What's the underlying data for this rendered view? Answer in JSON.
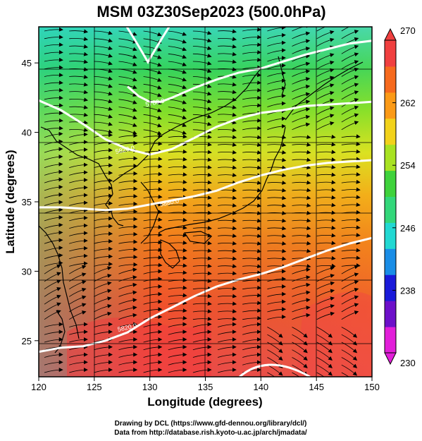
{
  "title": "MSM 03Z30Sep2023 (500.0hPa)",
  "xlabel": "Longitude (degrees)",
  "ylabel": "Latitude  (degrees)",
  "credits": {
    "line1": "Drawing by DCL (https://www.gfd-dennou.org/library/dcl/)",
    "line2": "Data from http://database.rish.kyoto-u.ac.jp/arch/jmadata/"
  },
  "chart_data": {
    "type": "heatmap",
    "variable_shading": "temperature (K)",
    "contours": "geopotential height (m)",
    "vectors": "wind streamlines",
    "xlim": [
      120,
      150
    ],
    "ylim": [
      22.4,
      47.6
    ],
    "x_ticks": [
      "120",
      "125",
      "130",
      "135",
      "140",
      "145",
      "150"
    ],
    "x_tick_values": [
      120,
      125,
      130,
      135,
      140,
      145,
      150
    ],
    "y_ticks": [
      "25",
      "30",
      "35",
      "40",
      "45"
    ],
    "y_tick_values": [
      25,
      30,
      35,
      40,
      45
    ],
    "colorbar": {
      "min": 230,
      "max": 270,
      "ticks": [
        "230",
        "238",
        "246",
        "254",
        "262",
        "270"
      ],
      "tick_values": [
        230,
        238,
        246,
        254,
        262,
        270
      ],
      "colors": [
        "#e21fd9",
        "#6d10c9",
        "#1a1ad9",
        "#1a8de6",
        "#22d8d2",
        "#33d77a",
        "#3fd23c",
        "#a8e222",
        "#f2d21b",
        "#fb9a17",
        "#f66a1e",
        "#f04040"
      ]
    },
    "contour_labels": [
      {
        "text": "5820.0",
        "lon": 128.0,
        "lat": 25.8
      },
      {
        "text": "5880.0",
        "lon": 131.8,
        "lat": 34.8
      },
      {
        "text": "5820.0",
        "lon": 127.8,
        "lat": 38.6
      },
      {
        "text": "5760.0",
        "lon": 130.5,
        "lat": 42.0
      }
    ],
    "contour_lines": [
      {
        "lat_at": [
          [
            120,
            24.2
          ],
          [
            122,
            24.5
          ],
          [
            124,
            24.6
          ],
          [
            126,
            25.0
          ],
          [
            128,
            25.6
          ],
          [
            130,
            26.6
          ],
          [
            132,
            27.4
          ],
          [
            134,
            28.2
          ],
          [
            136,
            28.9
          ],
          [
            138,
            29.4
          ],
          [
            140,
            29.8
          ],
          [
            142,
            30.3
          ],
          [
            144,
            30.9
          ],
          [
            146,
            31.5
          ],
          [
            148,
            32.0
          ],
          [
            150,
            32.4
          ]
        ]
      },
      {
        "lat_at": [
          [
            120,
            34.6
          ],
          [
            122,
            34.6
          ],
          [
            124,
            34.5
          ],
          [
            126,
            34.4
          ],
          [
            128,
            34.5
          ],
          [
            130,
            34.8
          ],
          [
            132,
            35.1
          ],
          [
            134,
            35.4
          ],
          [
            136,
            35.8
          ],
          [
            138,
            36.4
          ],
          [
            140,
            36.9
          ],
          [
            142,
            37.3
          ],
          [
            144,
            37.6
          ],
          [
            146,
            37.8
          ],
          [
            148,
            37.9
          ],
          [
            150,
            38.0
          ]
        ]
      },
      {
        "lat_at": [
          [
            120,
            42.3
          ],
          [
            122,
            41.6
          ],
          [
            124,
            40.6
          ],
          [
            126,
            39.5
          ],
          [
            128,
            38.8
          ],
          [
            130,
            38.4
          ],
          [
            132,
            38.8
          ],
          [
            134,
            39.6
          ],
          [
            136,
            40.4
          ],
          [
            138,
            41.0
          ],
          [
            140,
            41.4
          ],
          [
            142,
            41.6
          ],
          [
            144,
            41.9
          ],
          [
            146,
            42.0
          ],
          [
            148,
            42.1
          ],
          [
            150,
            42.2
          ]
        ]
      },
      {
        "lat_at": [
          [
            128,
            43.3
          ],
          [
            129,
            42.6
          ],
          [
            130,
            42.2
          ],
          [
            131,
            42.2
          ],
          [
            132,
            42.5
          ],
          [
            134,
            43.2
          ],
          [
            136,
            43.8
          ],
          [
            138,
            44.3
          ],
          [
            140,
            44.6
          ],
          [
            142,
            45.1
          ],
          [
            144,
            45.6
          ],
          [
            146,
            46.0
          ],
          [
            148,
            46.4
          ],
          [
            150,
            46.6
          ]
        ]
      }
    ]
  }
}
